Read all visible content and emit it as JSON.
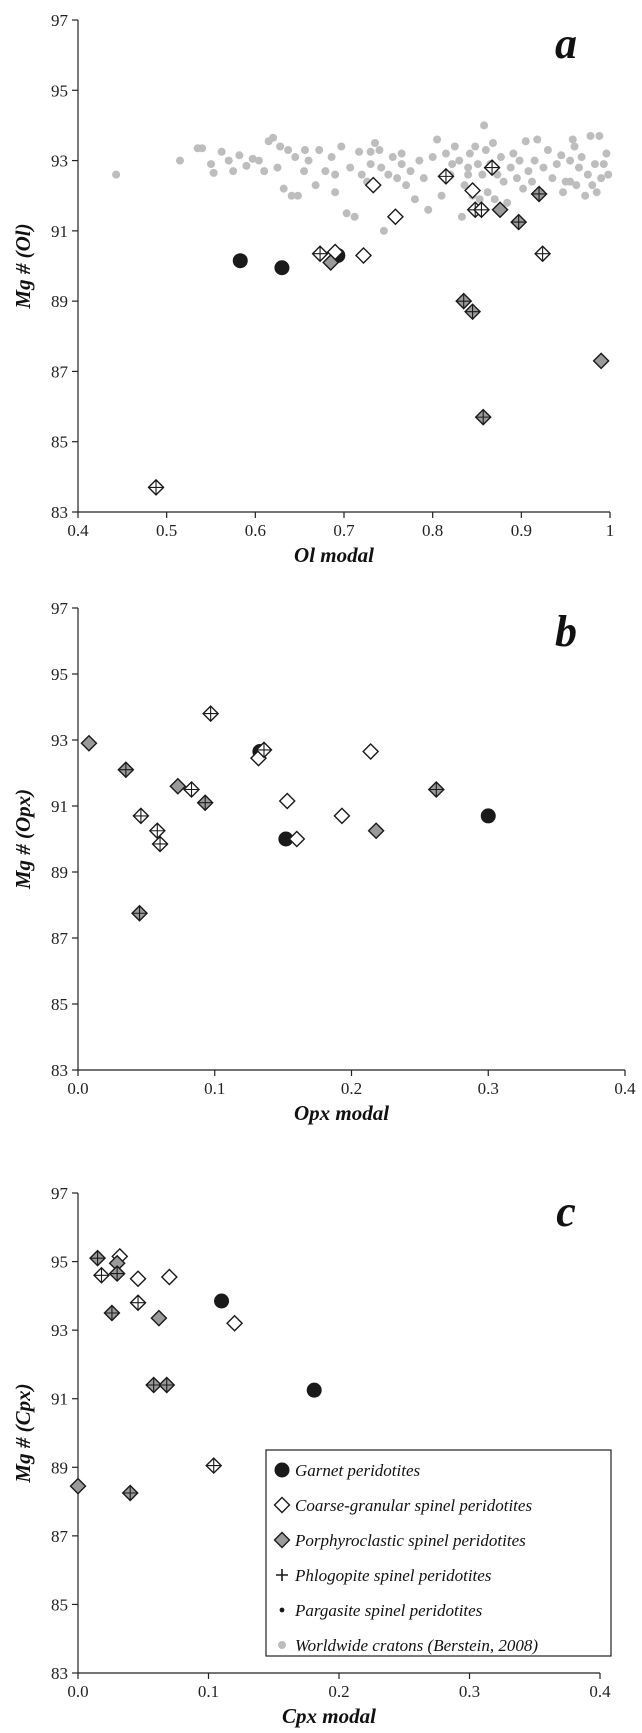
{
  "chart_data": [
    {
      "type": "scatter",
      "panel_letter": "a",
      "xlabel": "Ol modal",
      "ylabel": "Mg # (Ol)",
      "xlim": [
        0.4,
        1.0
      ],
      "ylim": [
        83,
        97
      ],
      "xticks": [
        "0.4",
        "0.5",
        "0.6",
        "0.7",
        "0.8",
        "0.9",
        "1"
      ],
      "yticks": [
        "83",
        "85",
        "87",
        "89",
        "91",
        "93",
        "95",
        "97"
      ],
      "series": [
        {
          "key": "garnet",
          "points": [
            [
              0.583,
              90.15
            ],
            [
              0.63,
              89.95
            ],
            [
              0.693,
              90.3
            ]
          ]
        },
        {
          "key": "coarse",
          "points": [
            [
              0.69,
              90.4
            ],
            [
              0.722,
              90.3
            ],
            [
              0.733,
              92.3
            ],
            [
              0.758,
              91.4
            ],
            [
              0.845,
              92.15
            ]
          ]
        },
        {
          "key": "porph",
          "points": [
            [
              0.685,
              90.1
            ],
            [
              0.876,
              91.6
            ],
            [
              0.99,
              87.3
            ]
          ]
        },
        {
          "key": "phlog",
          "points": [
            [
              0.488,
              83.7
            ],
            [
              0.673,
              90.35
            ],
            [
              0.815,
              92.55
            ],
            [
              0.848,
              91.6
            ],
            [
              0.855,
              91.6
            ],
            [
              0.867,
              92.8
            ],
            [
              0.924,
              90.35
            ]
          ]
        },
        {
          "key": "pargasite",
          "points": [
            [
              0.835,
              89.0
            ],
            [
              0.845,
              88.7
            ],
            [
              0.857,
              85.7
            ],
            [
              0.897,
              91.25
            ],
            [
              0.92,
              92.05
            ]
          ]
        },
        {
          "key": "worldwide",
          "points": [
            [
              0.443,
              92.6
            ],
            [
              0.515,
              93.0
            ],
            [
              0.535,
              93.35
            ],
            [
              0.54,
              93.35
            ],
            [
              0.55,
              92.9
            ],
            [
              0.553,
              92.65
            ],
            [
              0.562,
              93.25
            ],
            [
              0.57,
              93.0
            ],
            [
              0.575,
              92.7
            ],
            [
              0.582,
              93.15
            ],
            [
              0.59,
              92.85
            ],
            [
              0.597,
              93.05
            ],
            [
              0.604,
              93.0
            ],
            [
              0.61,
              92.7
            ],
            [
              0.615,
              93.55
            ],
            [
              0.62,
              93.65
            ],
            [
              0.625,
              92.8
            ],
            [
              0.628,
              93.4
            ],
            [
              0.632,
              92.2
            ],
            [
              0.637,
              93.3
            ],
            [
              0.641,
              92.0
            ],
            [
              0.645,
              93.1
            ],
            [
              0.648,
              92.0
            ],
            [
              0.655,
              92.7
            ],
            [
              0.66,
              93.0
            ],
            [
              0.668,
              92.3
            ],
            [
              0.672,
              93.3
            ],
            [
              0.679,
              92.7
            ],
            [
              0.686,
              93.1
            ],
            [
              0.69,
              92.1
            ],
            [
              0.697,
              93.4
            ],
            [
              0.703,
              91.5
            ],
            [
              0.707,
              92.8
            ],
            [
              0.712,
              91.4
            ],
            [
              0.717,
              93.25
            ],
            [
              0.72,
              92.6
            ],
            [
              0.726,
              92.4
            ],
            [
              0.73,
              93.25
            ],
            [
              0.735,
              93.5
            ],
            [
              0.74,
              93.3
            ],
            [
              0.742,
              92.8
            ],
            [
              0.745,
              91.0
            ],
            [
              0.75,
              92.6
            ],
            [
              0.755,
              93.1
            ],
            [
              0.76,
              92.5
            ],
            [
              0.765,
              92.9
            ],
            [
              0.77,
              92.3
            ],
            [
              0.775,
              92.7
            ],
            [
              0.78,
              91.9
            ],
            [
              0.785,
              93.0
            ],
            [
              0.79,
              92.5
            ],
            [
              0.795,
              91.6
            ],
            [
              0.8,
              93.1
            ],
            [
              0.805,
              93.6
            ],
            [
              0.81,
              92.0
            ],
            [
              0.815,
              93.2
            ],
            [
              0.82,
              92.6
            ],
            [
              0.825,
              93.4
            ],
            [
              0.83,
              93.0
            ],
            [
              0.833,
              91.4
            ],
            [
              0.836,
              92.3
            ],
            [
              0.84,
              92.8
            ],
            [
              0.842,
              93.2
            ],
            [
              0.845,
              92.0
            ],
            [
              0.848,
              93.4
            ],
            [
              0.851,
              92.9
            ],
            [
              0.853,
              91.9
            ],
            [
              0.856,
              92.6
            ],
            [
              0.858,
              94.0
            ],
            [
              0.86,
              93.3
            ],
            [
              0.862,
              92.1
            ],
            [
              0.865,
              92.9
            ],
            [
              0.868,
              93.5
            ],
            [
              0.87,
              91.9
            ],
            [
              0.873,
              92.6
            ],
            [
              0.877,
              93.1
            ],
            [
              0.88,
              92.4
            ],
            [
              0.884,
              91.8
            ],
            [
              0.888,
              92.8
            ],
            [
              0.891,
              93.2
            ],
            [
              0.895,
              92.5
            ],
            [
              0.898,
              93.0
            ],
            [
              0.902,
              92.2
            ],
            [
              0.905,
              93.55
            ],
            [
              0.908,
              92.7
            ],
            [
              0.912,
              92.4
            ],
            [
              0.915,
              93.0
            ],
            [
              0.918,
              93.6
            ],
            [
              0.922,
              92.1
            ],
            [
              0.925,
              92.8
            ],
            [
              0.93,
              93.3
            ],
            [
              0.935,
              92.5
            ],
            [
              0.94,
              92.9
            ],
            [
              0.945,
              93.15
            ],
            [
              0.95,
              92.4
            ],
            [
              0.955,
              93.0
            ],
            [
              0.958,
              93.6
            ],
            [
              0.962,
              92.3
            ],
            [
              0.965,
              92.8
            ],
            [
              0.968,
              93.1
            ],
            [
              0.972,
              92.0
            ],
            [
              0.975,
              92.6
            ],
            [
              0.978,
              93.7
            ],
            [
              0.98,
              92.3
            ],
            [
              0.983,
              92.9
            ],
            [
              0.985,
              92.1
            ],
            [
              0.988,
              93.7
            ],
            [
              0.99,
              92.5
            ],
            [
              0.993,
              92.9
            ],
            [
              0.996,
              93.2
            ],
            [
              0.998,
              92.6
            ],
            [
              0.955,
              92.4
            ],
            [
              0.947,
              92.1
            ],
            [
              0.96,
              93.4
            ],
            [
              0.84,
              92.6
            ],
            [
              0.822,
              92.9
            ],
            [
              0.73,
              92.9
            ],
            [
              0.765,
              93.2
            ],
            [
              0.69,
              92.6
            ],
            [
              0.656,
              93.3
            ]
          ]
        }
      ]
    },
    {
      "type": "scatter",
      "panel_letter": "b",
      "xlabel": "Opx modal",
      "ylabel": "Mg #  (Opx)",
      "xlim": [
        0.0,
        0.4
      ],
      "ylim": [
        83,
        97
      ],
      "xticks": [
        "0.0",
        "0.1",
        "0.2",
        "0.3",
        "0.4"
      ],
      "yticks": [
        "83",
        "85",
        "87",
        "89",
        "91",
        "93",
        "95",
        "97"
      ],
      "series": [
        {
          "key": "garnet",
          "points": [
            [
              0.133,
              92.65
            ],
            [
              0.152,
              90.0
            ],
            [
              0.3,
              90.7
            ]
          ]
        },
        {
          "key": "coarse",
          "points": [
            [
              0.132,
              92.45
            ],
            [
              0.153,
              91.15
            ],
            [
              0.16,
              90.0
            ],
            [
              0.193,
              90.7
            ],
            [
              0.214,
              92.65
            ]
          ]
        },
        {
          "key": "porph",
          "points": [
            [
              0.008,
              92.9
            ],
            [
              0.073,
              91.6
            ],
            [
              0.218,
              90.25
            ]
          ]
        },
        {
          "key": "phlog",
          "points": [
            [
              0.046,
              90.7
            ],
            [
              0.058,
              90.25
            ],
            [
              0.06,
              89.85
            ],
            [
              0.083,
              91.5
            ],
            [
              0.097,
              93.8
            ],
            [
              0.136,
              92.7
            ]
          ]
        },
        {
          "key": "pargasite",
          "points": [
            [
              0.035,
              92.1
            ],
            [
              0.045,
              87.75
            ],
            [
              0.093,
              91.1
            ],
            [
              0.262,
              91.5
            ]
          ]
        }
      ]
    },
    {
      "type": "scatter",
      "panel_letter": "c",
      "xlabel": "Cpx modal",
      "ylabel": "Mg # (Cpx)",
      "xlim": [
        0.0,
        0.4
      ],
      "ylim": [
        83,
        97
      ],
      "xticks": [
        "0.0",
        "0.1",
        "0.2",
        "0.3",
        "0.4"
      ],
      "yticks": [
        "83",
        "85",
        "87",
        "89",
        "91",
        "93",
        "95",
        "97"
      ],
      "series": [
        {
          "key": "garnet",
          "points": [
            [
              0.11,
              93.85
            ],
            [
              0.181,
              91.25
            ]
          ]
        },
        {
          "key": "coarse",
          "points": [
            [
              0.032,
              95.15
            ],
            [
              0.046,
              94.5
            ],
            [
              0.07,
              94.55
            ],
            [
              0.12,
              93.2
            ]
          ]
        },
        {
          "key": "porph",
          "points": [
            [
              0.0,
              88.45
            ],
            [
              0.03,
              94.95
            ],
            [
              0.062,
              93.35
            ]
          ]
        },
        {
          "key": "phlog",
          "points": [
            [
              0.018,
              94.6
            ],
            [
              0.046,
              93.8
            ],
            [
              0.104,
              89.05
            ]
          ]
        },
        {
          "key": "pargasite",
          "points": [
            [
              0.015,
              95.1
            ],
            [
              0.026,
              93.5
            ],
            [
              0.03,
              94.65
            ],
            [
              0.04,
              88.25
            ],
            [
              0.058,
              91.4
            ],
            [
              0.068,
              91.4
            ]
          ]
        }
      ]
    }
  ],
  "legend": {
    "entries": [
      {
        "key": "garnet",
        "label": "Garnet peridotites"
      },
      {
        "key": "coarse",
        "label": "Coarse-granular spinel peridotites"
      },
      {
        "key": "porph",
        "label": "Porphyroclastic spinel peridotites"
      },
      {
        "key": "phlog",
        "label": "Phlogopite spinel peridotites"
      },
      {
        "key": "pargasite",
        "label": "Pargasite spinel peridotites"
      },
      {
        "key": "worldwide",
        "label": "Worldwide cratons (Berstein, 2008)"
      }
    ]
  },
  "colors": {
    "garnet": "#1a1a1a",
    "diamond_open": "#ffffff",
    "diamond_porph": "#9a9a9a",
    "worldwide": "#bdbdbd",
    "stroke": "#1a1a1a"
  }
}
